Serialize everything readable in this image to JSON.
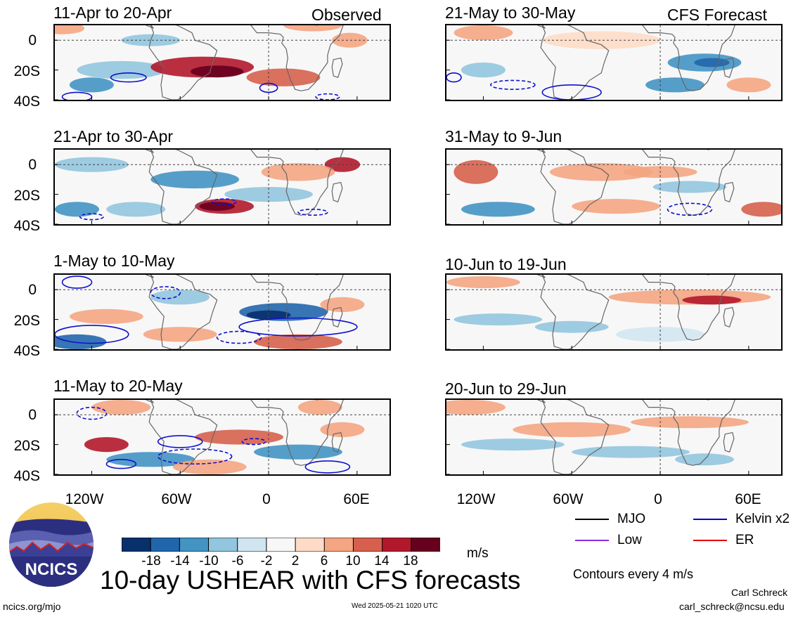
{
  "chart_data": {
    "type": "heatmap",
    "title": "10-day USHEAR with CFS forecasts",
    "units": "m/s",
    "contour_note": "Contours every 4 m/s",
    "x_ticks": [
      "120W",
      "60W",
      "0",
      "60E"
    ],
    "x_tick_values": [
      -120,
      -60,
      0,
      60
    ],
    "xlim": [
      -145,
      82
    ],
    "y_ticks": [
      "0",
      "20S",
      "40S"
    ],
    "y_tick_values": [
      0,
      -20,
      -40
    ],
    "ylim": [
      -40,
      10
    ],
    "colorbar": {
      "labels": [
        "-18",
        "-14",
        "-10",
        "-6",
        "-2",
        "2",
        "6",
        "10",
        "14",
        "18"
      ],
      "colors": [
        "#08306b",
        "#2166ac",
        "#4393c3",
        "#92c5de",
        "#d1e5f0",
        "#f7f7f7",
        "#fddbc7",
        "#f4a582",
        "#d6604d",
        "#b2182b",
        "#67001f"
      ]
    },
    "contour_legend": [
      {
        "label": "MJO",
        "color": "#000000"
      },
      {
        "label": "Kelvin x2",
        "color": "#0000cc"
      },
      {
        "label": "Low",
        "color": "#8a2be2"
      },
      {
        "label": "ER",
        "color": "#e00000"
      }
    ],
    "panels": [
      {
        "period": "11-Apr to 20-Apr",
        "tag": "Observed",
        "column": "left",
        "row": 0
      },
      {
        "period": "21-Apr to 30-Apr",
        "tag": "",
        "column": "left",
        "row": 1
      },
      {
        "period": "1-May to 10-May",
        "tag": "",
        "column": "left",
        "row": 2
      },
      {
        "period": "11-May to 20-May",
        "tag": "",
        "column": "left",
        "row": 3
      },
      {
        "period": "21-May to 30-May",
        "tag": "CFS Forecast",
        "column": "right",
        "row": 0
      },
      {
        "period": "31-May to 9-Jun",
        "tag": "",
        "column": "right",
        "row": 1
      },
      {
        "period": "10-Jun to 19-Jun",
        "tag": "",
        "column": "right",
        "row": 2
      },
      {
        "period": "20-Jun to 29-Jun",
        "tag": "",
        "column": "right",
        "row": 3
      }
    ]
  },
  "footer": {
    "logo_text": "NCICS",
    "left_link": "ncics.org/mjo",
    "timestamp": "Wed 2025-05-21 1020 UTC",
    "author": "Carl Schreck",
    "email": "carl_schreck@ncsu.edu"
  }
}
